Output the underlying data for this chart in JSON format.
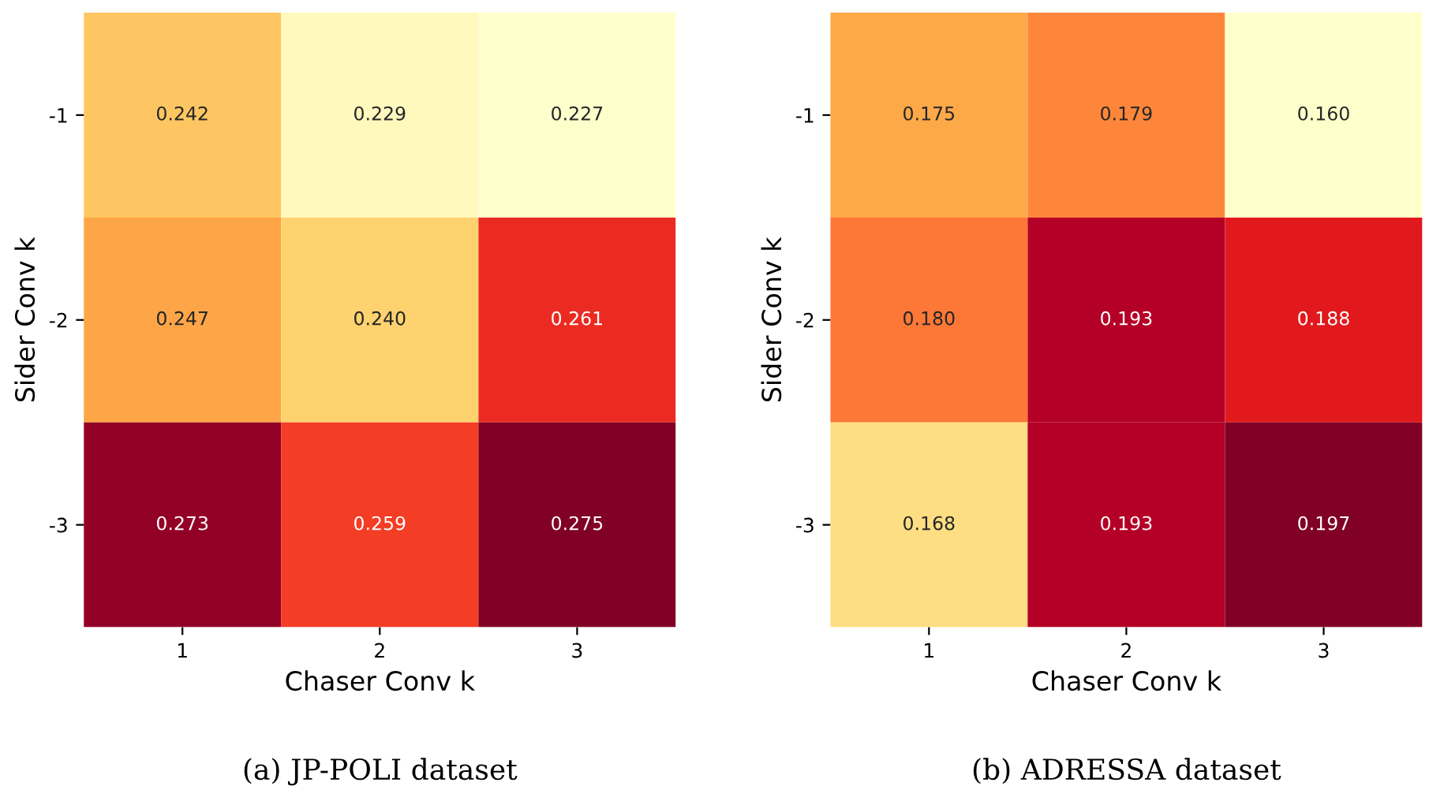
{
  "chart_data": [
    {
      "type": "heatmap",
      "xlabel": "Chaser Conv k",
      "ylabel": "Sider Conv k",
      "categories": [
        "1",
        "2",
        "3"
      ],
      "y_categories": [
        "-1",
        "-2",
        "-3"
      ],
      "cells": [
        [
          0.242,
          0.229,
          0.227
        ],
        [
          0.247,
          0.24,
          0.261
        ],
        [
          0.273,
          0.259,
          0.275
        ]
      ],
      "cell_labels": [
        [
          "0.242",
          "0.229",
          "0.227"
        ],
        [
          "0.247",
          "0.240",
          "0.261"
        ],
        [
          "0.273",
          "0.259",
          "0.275"
        ]
      ],
      "data_labels": true,
      "annotations": [
        "(a) JP-POLI dataset"
      ]
    },
    {
      "type": "heatmap",
      "xlabel": "Chaser Conv k",
      "ylabel": "Sider Conv k",
      "categories": [
        "1",
        "2",
        "3"
      ],
      "y_categories": [
        "-1",
        "-2",
        "-3"
      ],
      "cells": [
        [
          0.175,
          0.179,
          0.16
        ],
        [
          0.18,
          0.193,
          0.188
        ],
        [
          0.168,
          0.193,
          0.197
        ]
      ],
      "cell_labels": [
        [
          "0.175",
          "0.179",
          "0.160"
        ],
        [
          "0.180",
          "0.193",
          "0.188"
        ],
        [
          "0.168",
          "0.193",
          "0.197"
        ]
      ],
      "data_labels": true,
      "annotations": [
        "(b) ADRESSA dataset"
      ]
    }
  ]
}
